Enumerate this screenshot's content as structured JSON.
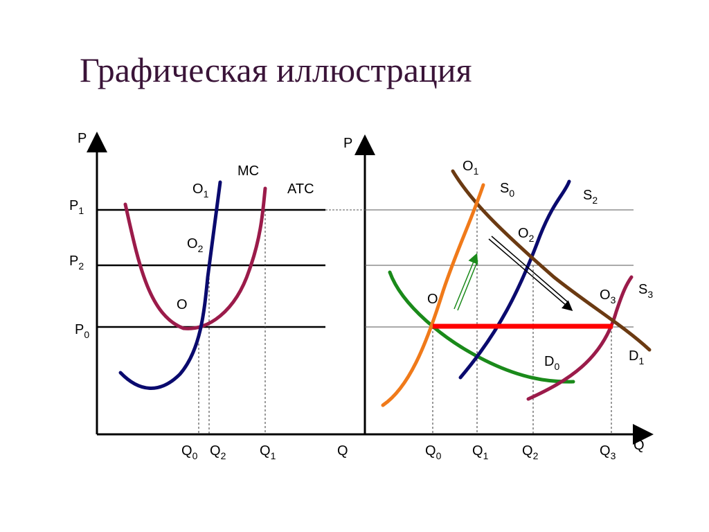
{
  "title": "Графическая иллюстрация",
  "left": {
    "labels": [
      {
        "text": "P"
      },
      {
        "text": "P",
        "sub": "1"
      },
      {
        "text": "P",
        "sub": "2"
      },
      {
        "text": "P",
        "sub": "0"
      },
      {
        "text": "MC"
      },
      {
        "text": "O",
        "sub": "1"
      },
      {
        "text": "ATC"
      },
      {
        "text": "O",
        "sub": "2"
      },
      {
        "text": "O"
      },
      {
        "text": "Q",
        "sub": "0"
      },
      {
        "text": "Q",
        "sub": "2"
      },
      {
        "text": "Q",
        "sub": "1"
      },
      {
        "text": "Q"
      }
    ]
  },
  "right": {
    "labels": [
      {
        "text": "P"
      },
      {
        "text": "O",
        "sub": "1"
      },
      {
        "text": "S",
        "sub": "0"
      },
      {
        "text": "S",
        "sub": "2"
      },
      {
        "text": "O",
        "sub": "2"
      },
      {
        "text": "S",
        "sub": "3"
      },
      {
        "text": "O",
        "sub": "3"
      },
      {
        "text": "O"
      },
      {
        "text": "D",
        "sub": "0"
      },
      {
        "text": "D",
        "sub": "1"
      },
      {
        "text": "Q",
        "sub": "0"
      },
      {
        "text": "Q",
        "sub": "1"
      },
      {
        "text": "Q",
        "sub": "2"
      },
      {
        "text": "Q",
        "sub": "3"
      },
      {
        "text": "Q"
      }
    ]
  }
}
